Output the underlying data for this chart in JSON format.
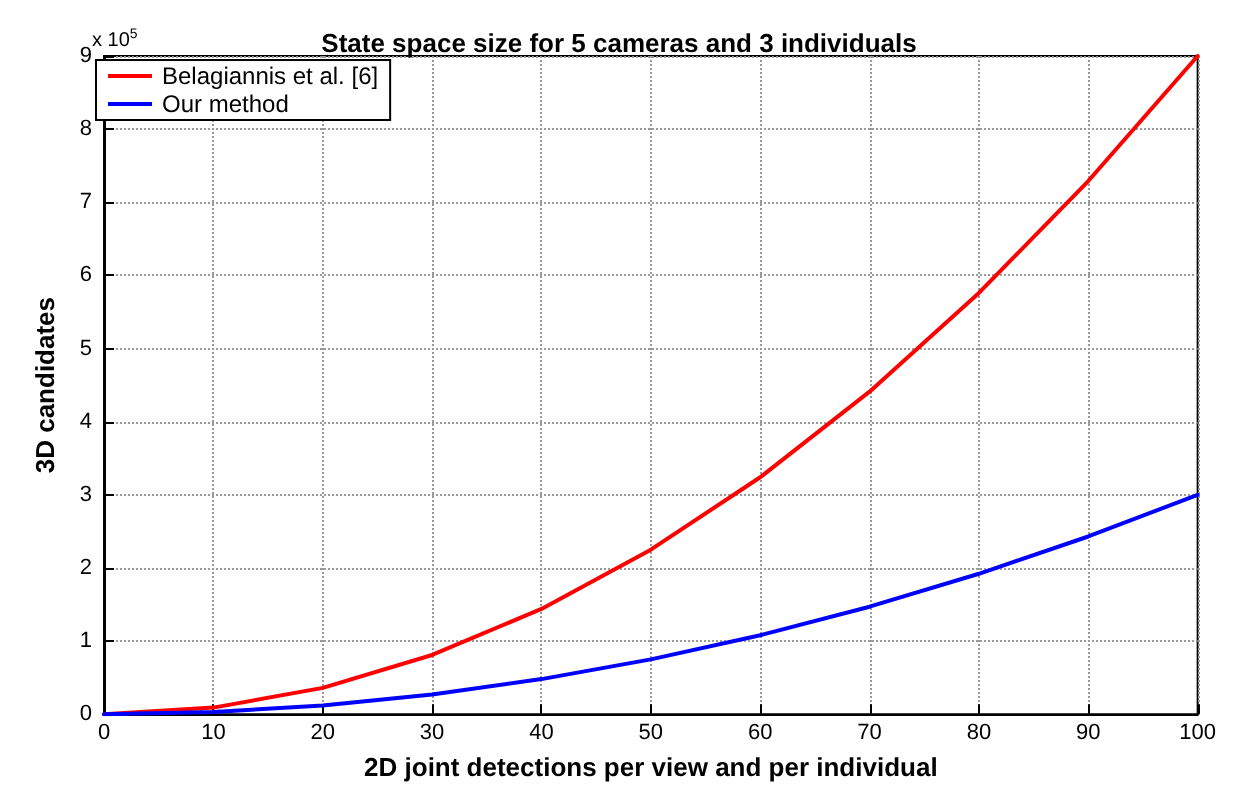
{
  "chart_data": {
    "type": "line",
    "title": "State space size for 5 cameras and 3 individuals",
    "xlabel": "2D joint detections per view and per individual",
    "ylabel": "3D candidates",
    "annotations": [
      "x 10$^{5}$"
    ],
    "x": [
      0,
      10,
      20,
      30,
      40,
      50,
      60,
      70,
      80,
      90,
      100
    ],
    "series": [
      {
        "name": "Belagiannis et al. [6]",
        "color": "#ff0000",
        "values": [
          0,
          0.09,
          0.36,
          0.81,
          1.44,
          2.25,
          3.24,
          4.41,
          5.76,
          7.29,
          9.0
        ]
      },
      {
        "name": "Our method",
        "color": "#0000ff",
        "values": [
          0,
          0.03,
          0.12,
          0.27,
          0.48,
          0.75,
          1.08,
          1.47,
          1.92,
          2.43,
          3.0
        ]
      }
    ],
    "xlim": [
      0,
      100
    ],
    "xticks": [
      0,
      10,
      20,
      30,
      40,
      50,
      60,
      70,
      80,
      90,
      100
    ],
    "ylim": [
      0,
      9
    ],
    "yticks": [
      0,
      1,
      2,
      3,
      4,
      5,
      6,
      7,
      8,
      9
    ],
    "grid": true,
    "legend": "top left",
    "marker": "none",
    "line_style": "solid"
  }
}
